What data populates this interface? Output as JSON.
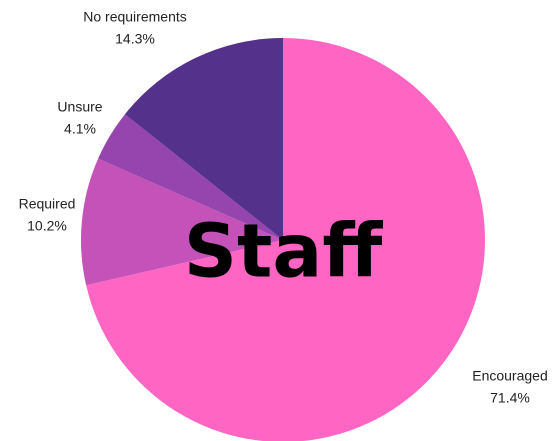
{
  "chart_data": {
    "type": "pie",
    "title": "Staff",
    "categories": [
      "Encouraged",
      "Required",
      "Unsure",
      "No requirements"
    ],
    "values": [
      71.4,
      10.2,
      4.1,
      14.3
    ],
    "value_labels": [
      "71.4%",
      "10.2%",
      "4.1%",
      "14.3%"
    ],
    "colors": [
      "#ff66c4",
      "#c452b8",
      "#9545ad",
      "#54318a"
    ]
  }
}
